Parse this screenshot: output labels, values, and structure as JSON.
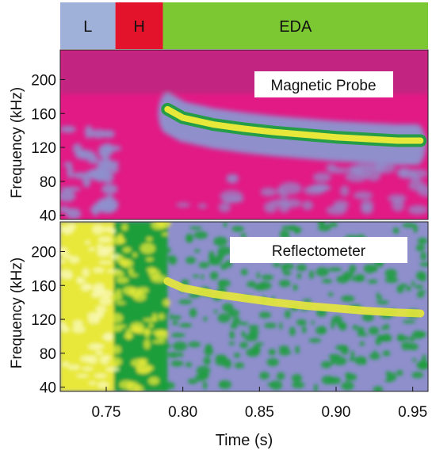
{
  "chart_data": [
    {
      "type": "heatmap",
      "panel": "top",
      "title": "",
      "box_label": "Magnetic Probe",
      "ylabel": "Frequency (kHz)",
      "xlabel": "",
      "xlim": [
        0.72,
        0.96
      ],
      "ylim": [
        35,
        235
      ],
      "yticks": [
        40,
        80,
        120,
        160,
        200
      ],
      "colormap": [
        "#a6307e",
        "#e21a86",
        "#8f8fcc",
        "#1a9e3a",
        "#e8e83a",
        "#f8f8b0"
      ],
      "regimes": [
        {
          "name": "L",
          "start": 0.72,
          "end": 0.756,
          "color": "#9fb0d9"
        },
        {
          "name": "H",
          "start": 0.756,
          "end": 0.787,
          "color": "#e2132b"
        },
        {
          "name": "EDA",
          "start": 0.787,
          "end": 0.96,
          "color": "#7cc832"
        }
      ],
      "mode_trace": {
        "label": "EDA mode",
        "t": [
          0.79,
          0.8,
          0.82,
          0.84,
          0.86,
          0.88,
          0.9,
          0.92,
          0.94,
          0.955
        ],
        "freq_khz": [
          165,
          155,
          147,
          142,
          138,
          135,
          132,
          130,
          128,
          128
        ]
      }
    },
    {
      "type": "heatmap",
      "panel": "bottom",
      "title": "",
      "box_label": "Reflectometer",
      "ylabel": "Frequency (kHz)",
      "xlabel": "Time (s)",
      "xlim": [
        0.72,
        0.96
      ],
      "ylim": [
        35,
        235
      ],
      "xticks": [
        0.75,
        0.8,
        0.85,
        0.9,
        0.95
      ],
      "xtick_labels": [
        "0.75",
        "0.80",
        "0.85",
        "0.90",
        "0.95"
      ],
      "yticks": [
        40,
        80,
        120,
        160,
        200
      ],
      "mode_trace": {
        "label": "EDA mode",
        "t": [
          0.79,
          0.8,
          0.82,
          0.84,
          0.86,
          0.88,
          0.9,
          0.92,
          0.94,
          0.955
        ],
        "freq_khz": [
          165,
          157,
          150,
          145,
          140,
          136,
          133,
          130,
          128,
          127
        ]
      }
    }
  ]
}
